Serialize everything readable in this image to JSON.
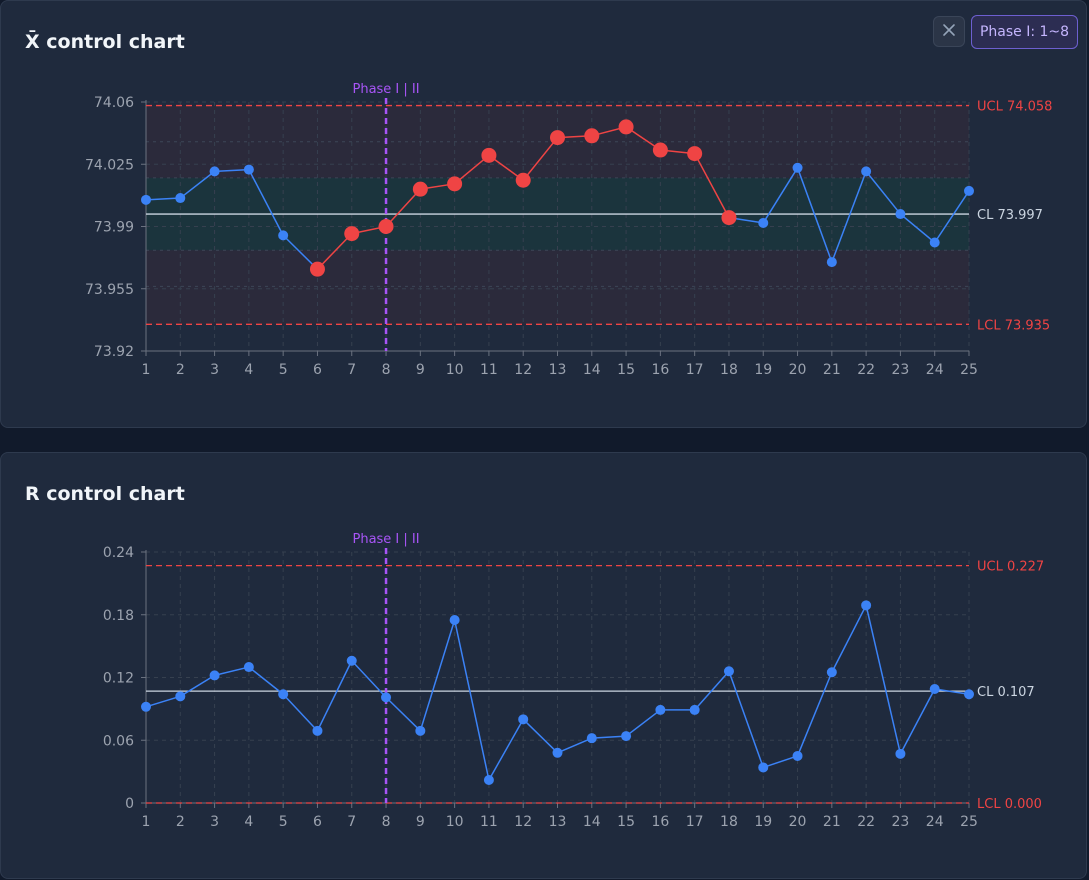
{
  "toolbar": {
    "close_icon": "close-icon",
    "phase_button_label": "Phase I: 1~8"
  },
  "chart_data": [
    {
      "type": "line",
      "title": "X̄ control chart",
      "categories": [
        1,
        2,
        3,
        4,
        5,
        6,
        7,
        8,
        9,
        10,
        11,
        12,
        13,
        14,
        15,
        16,
        17,
        18,
        19,
        20,
        21,
        22,
        23,
        24,
        25
      ],
      "series": [
        {
          "values": [
            74.005,
            74.006,
            74.021,
            74.022,
            73.985,
            73.966,
            73.986,
            73.99,
            74.011,
            74.014,
            74.03,
            74.016,
            74.04,
            74.041,
            74.046,
            74.033,
            74.031,
            73.995,
            73.992,
            74.023,
            73.97,
            74.021,
            73.997,
            73.981,
            74.01
          ],
          "color": "#3b82f6"
        }
      ],
      "out_of_control": [
        6,
        7,
        8,
        9,
        10,
        11,
        12,
        13,
        14,
        15,
        16,
        17,
        18
      ],
      "out_of_control_color": "#ef4444",
      "ylim": [
        73.92,
        74.06
      ],
      "yticks": [
        74.06,
        74.025,
        73.99,
        73.955,
        73.92
      ],
      "ytick_labels": [
        "74.06",
        "74.025",
        "73.99",
        "73.955",
        "73.92"
      ],
      "cl": 73.997,
      "ucl": 74.058,
      "lcl": 73.935,
      "cl_label": "CL 73.997",
      "ucl_label": "UCL 74.058",
      "lcl_label": "LCL 73.935",
      "phase_split_after": 8,
      "phase_label": "Phase I | II",
      "zones": true,
      "grid": true,
      "legend": "none"
    },
    {
      "type": "line",
      "title": "R control chart",
      "categories": [
        1,
        2,
        3,
        4,
        5,
        6,
        7,
        8,
        9,
        10,
        11,
        12,
        13,
        14,
        15,
        16,
        17,
        18,
        19,
        20,
        21,
        22,
        23,
        24,
        25
      ],
      "series": [
        {
          "values": [
            0.092,
            0.102,
            0.122,
            0.13,
            0.104,
            0.069,
            0.136,
            0.101,
            0.069,
            0.175,
            0.022,
            0.08,
            0.048,
            0.062,
            0.064,
            0.089,
            0.089,
            0.126,
            0.034,
            0.045,
            0.125,
            0.189,
            0.047,
            0.109,
            0.104
          ],
          "color": "#3b82f6"
        }
      ],
      "out_of_control": [],
      "out_of_control_color": "#ef4444",
      "ylim": [
        0,
        0.24
      ],
      "yticks": [
        0.24,
        0.18,
        0.12,
        0.06,
        0
      ],
      "ytick_labels": [
        "0.24",
        "0.18",
        "0.12",
        "0.06",
        "0"
      ],
      "cl": 0.107,
      "ucl": 0.227,
      "lcl": 0.0,
      "cl_label": "CL 0.107",
      "ucl_label": "UCL 0.227",
      "lcl_label": "LCL 0.000",
      "phase_split_after": 8,
      "phase_label": "Phase I | II",
      "zones": false,
      "grid": true,
      "legend": "none"
    }
  ]
}
